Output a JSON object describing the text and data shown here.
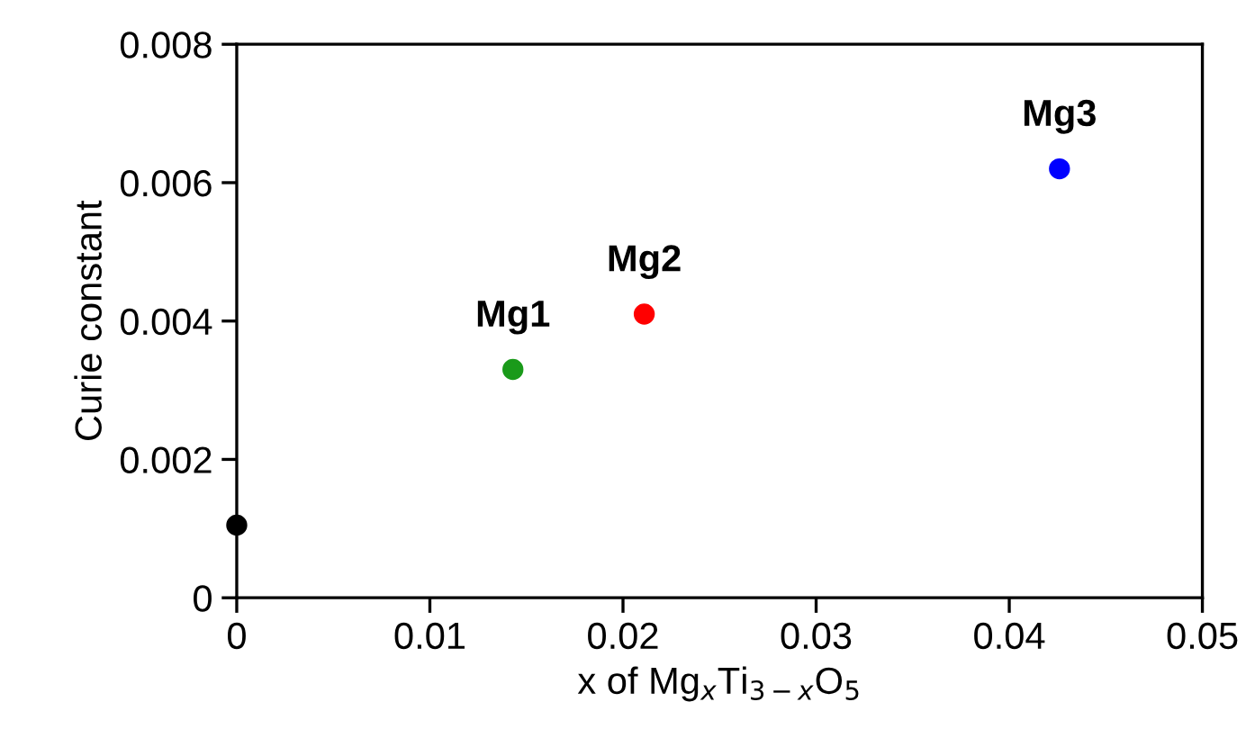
{
  "chart_data": {
    "type": "scatter",
    "xlabel": "x of Mg$_{x}$Ti$_{3−x}$O$_{5}$",
    "ylabel": "Curie constant",
    "x": [
      0,
      0.0143,
      0.0211,
      0.0426
    ],
    "values": [
      0.00105,
      0.0033,
      0.0041,
      0.0062
    ],
    "colors": [
      "#000000",
      "#1a9a1a",
      "#ff0000",
      "#0000ff"
    ],
    "marker": "circle",
    "xlim": [
      0,
      0.05
    ],
    "xticks": [
      0,
      0.01,
      0.02,
      0.03,
      0.04,
      0.05
    ],
    "ylim": [
      0,
      0.008
    ],
    "yticks": [
      0,
      0.002,
      0.004,
      0.006,
      0.008
    ],
    "grid": false,
    "legend": false,
    "annotations": [
      {
        "text": "Mg1",
        "x": 0.0143,
        "y": 0.0033
      },
      {
        "text": "Mg2",
        "x": 0.0211,
        "y": 0.0041
      },
      {
        "text": "Mg3",
        "x": 0.0426,
        "y": 0.0062
      }
    ]
  }
}
